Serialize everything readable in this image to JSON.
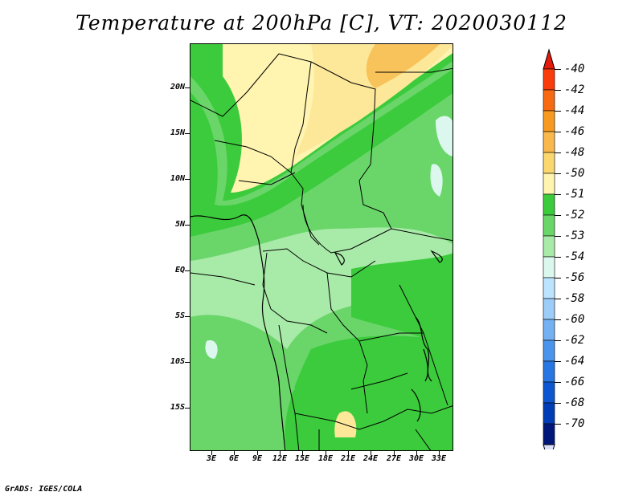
{
  "title": "Temperature at 200hPa [C], VT: 2020030112",
  "credit": "GrADS: IGES/COLA",
  "map": {
    "region": "Central Africa",
    "lat_labels": [
      "20N",
      "15N",
      "10N",
      "5N",
      "EQ",
      "5S",
      "10S",
      "15S"
    ],
    "lon_labels": [
      "3E",
      "6E",
      "9E",
      "12E",
      "15E",
      "18E",
      "21E",
      "24E",
      "27E",
      "30E",
      "33E"
    ],
    "field_colors": {
      "-49": "#fde89a",
      "-50": "#fff4b0",
      "-51": "#3ccb3c",
      "-52": "#6ad66a",
      "-53": "#a8eaa8",
      "-54": "#dcf8ee",
      "-48": "#f7c35a"
    }
  },
  "colorbar": {
    "labels": [
      "-40",
      "-42",
      "-44",
      "-46",
      "-48",
      "-50",
      "-51",
      "-52",
      "-53",
      "-54",
      "-56",
      "-58",
      "-60",
      "-62",
      "-64",
      "-66",
      "-68",
      "-70"
    ],
    "colors": [
      "#fa3c0c",
      "#f76a11",
      "#f79a1f",
      "#f9b84b",
      "#fbd86f",
      "#fff4b0",
      "#3ccb3c",
      "#6ad66a",
      "#a8eaa8",
      "#dcf8ee",
      "#bde4ff",
      "#9ccdf8",
      "#74b1f3",
      "#4b94ec",
      "#2876e2",
      "#0d56cf",
      "#003db5",
      "#00177a"
    ],
    "top_arrow_color": "#e41a0a",
    "bottom_arrow_color": "#dce0ff"
  }
}
